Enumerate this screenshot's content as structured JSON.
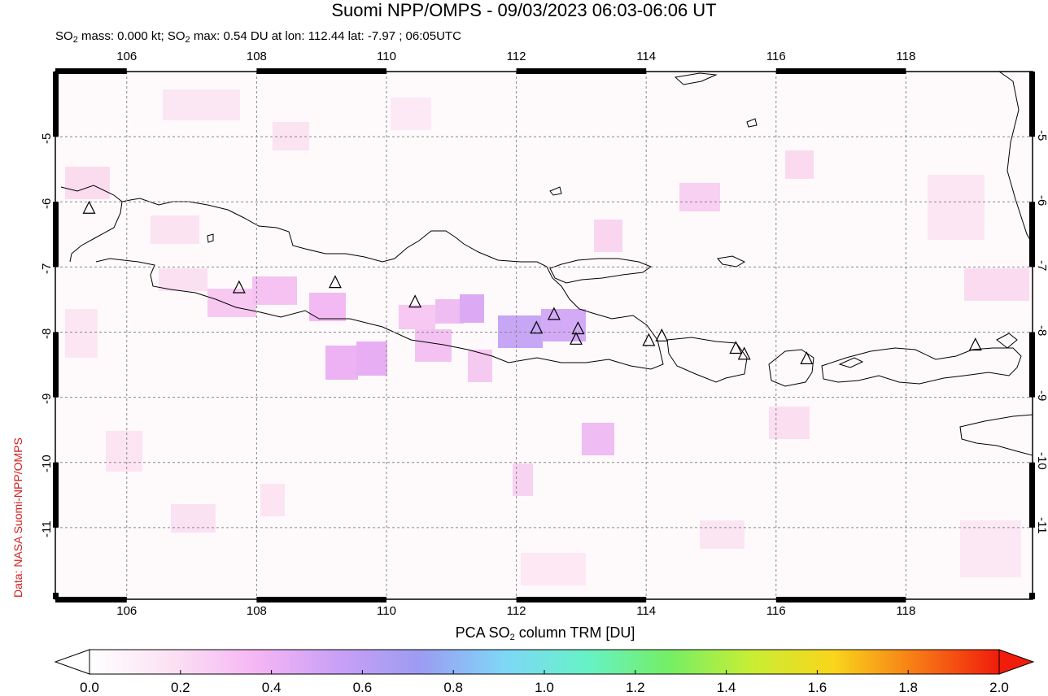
{
  "title": "Suomi NPP/OMPS - 09/03/2023 06:03-06:06 UT",
  "subtitle": {
    "mass_prefix": "SO",
    "mass_sub": "2",
    "mass_text": " mass: 0.000 kt; ",
    "max_prefix": "SO",
    "max_sub": "2",
    "max_text": " max: 0.54 DU at lon: 112.44 lat: -7.97 ; 06:05UTC"
  },
  "credit": "Data: NASA Suomi-NPP/OMPS",
  "colorbar": {
    "label_prefix": "PCA SO",
    "label_sub": "2",
    "label_suffix": " column TRM [DU]",
    "ticks": [
      "0.0",
      "0.2",
      "0.4",
      "0.6",
      "0.8",
      "1.0",
      "1.2",
      "1.4",
      "1.6",
      "1.8",
      "2.0"
    ],
    "colors": [
      "#ffffff",
      "#fbe1f3",
      "#f6b6f4",
      "#c9a0f6",
      "#9c9cf2",
      "#7fd6f7",
      "#66f2c8",
      "#74ee66",
      "#c8ee34",
      "#f9d51c",
      "#f77a16",
      "#f01c0c"
    ]
  },
  "map": {
    "lon_range": [
      104.9,
      119.95
    ],
    "lat_range": [
      -12.1,
      -4.0
    ],
    "x_ticks": [
      "106",
      "108",
      "110",
      "112",
      "114",
      "116",
      "118"
    ],
    "y_ticks": [
      "-5",
      "-6",
      "-7",
      "-8",
      "-9",
      "-10",
      "-11"
    ],
    "volcano_icon": "triangle-icon",
    "volcanoes": [
      {
        "lon": 105.42,
        "lat": -6.1
      },
      {
        "lon": 107.73,
        "lat": -7.32
      },
      {
        "lon": 109.21,
        "lat": -7.24
      },
      {
        "lon": 110.44,
        "lat": -7.54
      },
      {
        "lon": 112.31,
        "lat": -7.94
      },
      {
        "lon": 112.58,
        "lat": -7.73
      },
      {
        "lon": 112.95,
        "lat": -7.95
      },
      {
        "lon": 112.92,
        "lat": -8.11
      },
      {
        "lon": 114.04,
        "lat": -8.13
      },
      {
        "lon": 114.24,
        "lat": -8.06
      },
      {
        "lon": 115.38,
        "lat": -8.25
      },
      {
        "lon": 115.51,
        "lat": -8.34
      },
      {
        "lon": 116.47,
        "lat": -8.41
      },
      {
        "lon": 119.07,
        "lat": -8.2
      }
    ]
  }
}
